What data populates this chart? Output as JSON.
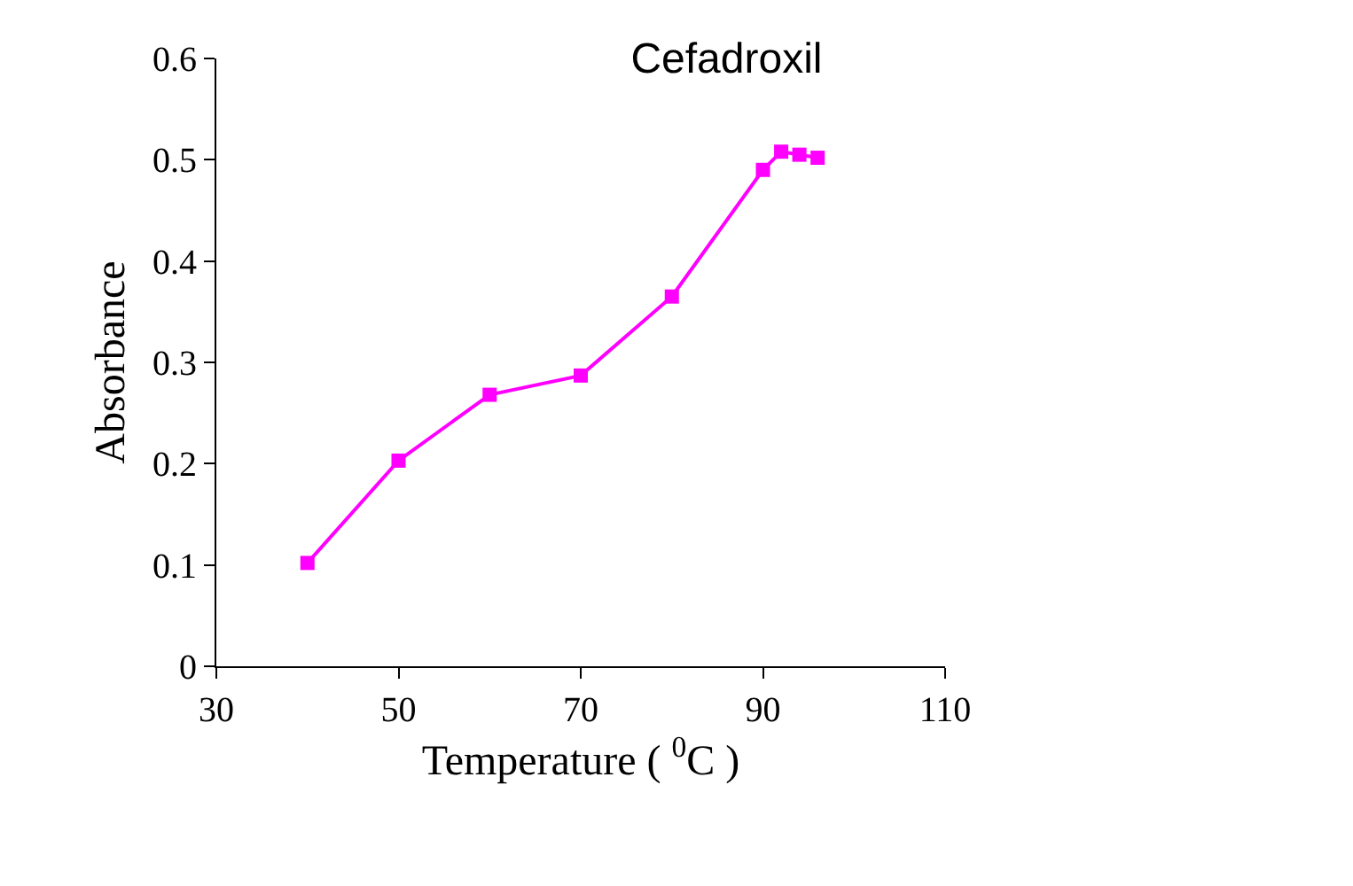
{
  "chart_data": {
    "type": "line",
    "title": "Cefadroxil",
    "xlabel": "Temperature ( $^{0}$C )",
    "ylabel": "Absorbance",
    "x": [
      40,
      50,
      60,
      70,
      80,
      90,
      92,
      94,
      96
    ],
    "series": [
      {
        "color": "#ff00ff",
        "values": [
          0.102,
          0.203,
          0.268,
          0.287,
          0.365,
          0.49,
          0.508,
          0.505,
          0.502
        ]
      }
    ],
    "xlim": [
      30,
      110
    ],
    "xticks": [
      30,
      50,
      70,
      90,
      110
    ],
    "ylim": [
      0,
      0.6
    ],
    "yticks": [
      0,
      0.1,
      0.2,
      0.3,
      0.4,
      0.5,
      0.6
    ],
    "grid": false,
    "marker": "square",
    "line_style": "solid"
  }
}
